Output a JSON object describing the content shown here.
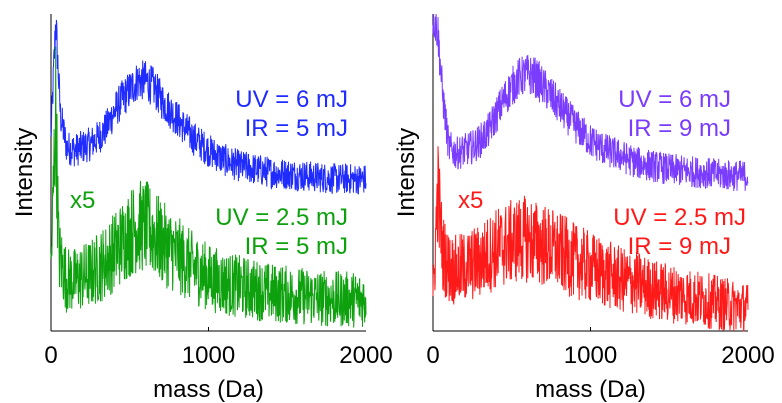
{
  "chart_data": [
    {
      "type": "line",
      "xlabel": "mass (Da)",
      "ylabel": "Intensity",
      "xlim": [
        0,
        2000
      ],
      "xticks": [
        "0",
        "1000",
        "2000"
      ],
      "grid": false,
      "series": [
        {
          "color": "#1f2bff",
          "x": [
            0,
            30,
            60,
            100,
            150,
            200,
            250,
            300,
            350,
            400,
            450,
            500,
            550,
            600,
            650,
            700,
            800,
            900,
            1000,
            1100,
            1200,
            1300,
            1400,
            1500,
            1600,
            1700,
            1800,
            1900,
            2000
          ],
          "y": [
            0.61,
            0.98,
            0.68,
            0.58,
            0.57,
            0.58,
            0.59,
            0.61,
            0.64,
            0.69,
            0.73,
            0.76,
            0.79,
            0.79,
            0.77,
            0.73,
            0.67,
            0.61,
            0.57,
            0.54,
            0.52,
            0.51,
            0.5,
            0.495,
            0.49,
            0.485,
            0.48,
            0.48,
            0.478
          ],
          "labels": [
            "UV = 6 mJ",
            "IR = 5 mJ"
          ]
        },
        {
          "color": "#0ea10e",
          "x": [
            0,
            30,
            50,
            100,
            150,
            200,
            250,
            300,
            350,
            400,
            450,
            500,
            550,
            600,
            650,
            700,
            800,
            900,
            1000,
            1100,
            1200,
            1300,
            1400,
            1500,
            1600,
            1700,
            1800,
            1900,
            2000
          ],
          "y": [
            0.18,
            0.7,
            0.24,
            0.16,
            0.16,
            0.17,
            0.18,
            0.2,
            0.22,
            0.25,
            0.28,
            0.31,
            0.33,
            0.33,
            0.31,
            0.28,
            0.24,
            0.2,
            0.17,
            0.15,
            0.14,
            0.13,
            0.12,
            0.115,
            0.11,
            0.105,
            0.1,
            0.1,
            0.1
          ],
          "labels": [
            "x5",
            "UV = 2.5 mJ",
            "IR = 5 mJ"
          ]
        }
      ]
    },
    {
      "type": "line",
      "xlabel": "mass (Da)",
      "ylabel": "Intensity",
      "xlim": [
        0,
        2000
      ],
      "xticks": [
        "0",
        "1000",
        "2000"
      ],
      "grid": false,
      "series": [
        {
          "color": "#7a3cff",
          "x": [
            0,
            30,
            60,
            100,
            150,
            200,
            250,
            300,
            350,
            400,
            450,
            500,
            550,
            600,
            650,
            700,
            800,
            900,
            1000,
            1100,
            1200,
            1300,
            1400,
            1500,
            1600,
            1700,
            1800,
            1900,
            2000
          ],
          "y": [
            1.0,
            0.95,
            0.75,
            0.58,
            0.56,
            0.57,
            0.58,
            0.6,
            0.63,
            0.68,
            0.73,
            0.77,
            0.8,
            0.81,
            0.8,
            0.77,
            0.71,
            0.65,
            0.6,
            0.57,
            0.55,
            0.53,
            0.52,
            0.51,
            0.505,
            0.5,
            0.495,
            0.49,
            0.49
          ],
          "labels": [
            "UV = 6 mJ",
            "IR = 9 mJ"
          ]
        },
        {
          "color": "#ff1a1a",
          "x": [
            0,
            30,
            60,
            100,
            150,
            200,
            250,
            300,
            350,
            400,
            450,
            500,
            550,
            600,
            650,
            700,
            800,
            900,
            1000,
            1100,
            1200,
            1300,
            1400,
            1500,
            1600,
            1700,
            1800,
            1900,
            2000
          ],
          "y": [
            0.08,
            0.45,
            0.25,
            0.2,
            0.19,
            0.2,
            0.21,
            0.22,
            0.24,
            0.26,
            0.27,
            0.28,
            0.29,
            0.29,
            0.28,
            0.27,
            0.25,
            0.22,
            0.2,
            0.18,
            0.16,
            0.15,
            0.13,
            0.12,
            0.11,
            0.1,
            0.09,
            0.08,
            0.07
          ],
          "labels": [
            "x5",
            "UV = 2.5 mJ",
            "IR = 9 mJ"
          ]
        }
      ]
    }
  ]
}
